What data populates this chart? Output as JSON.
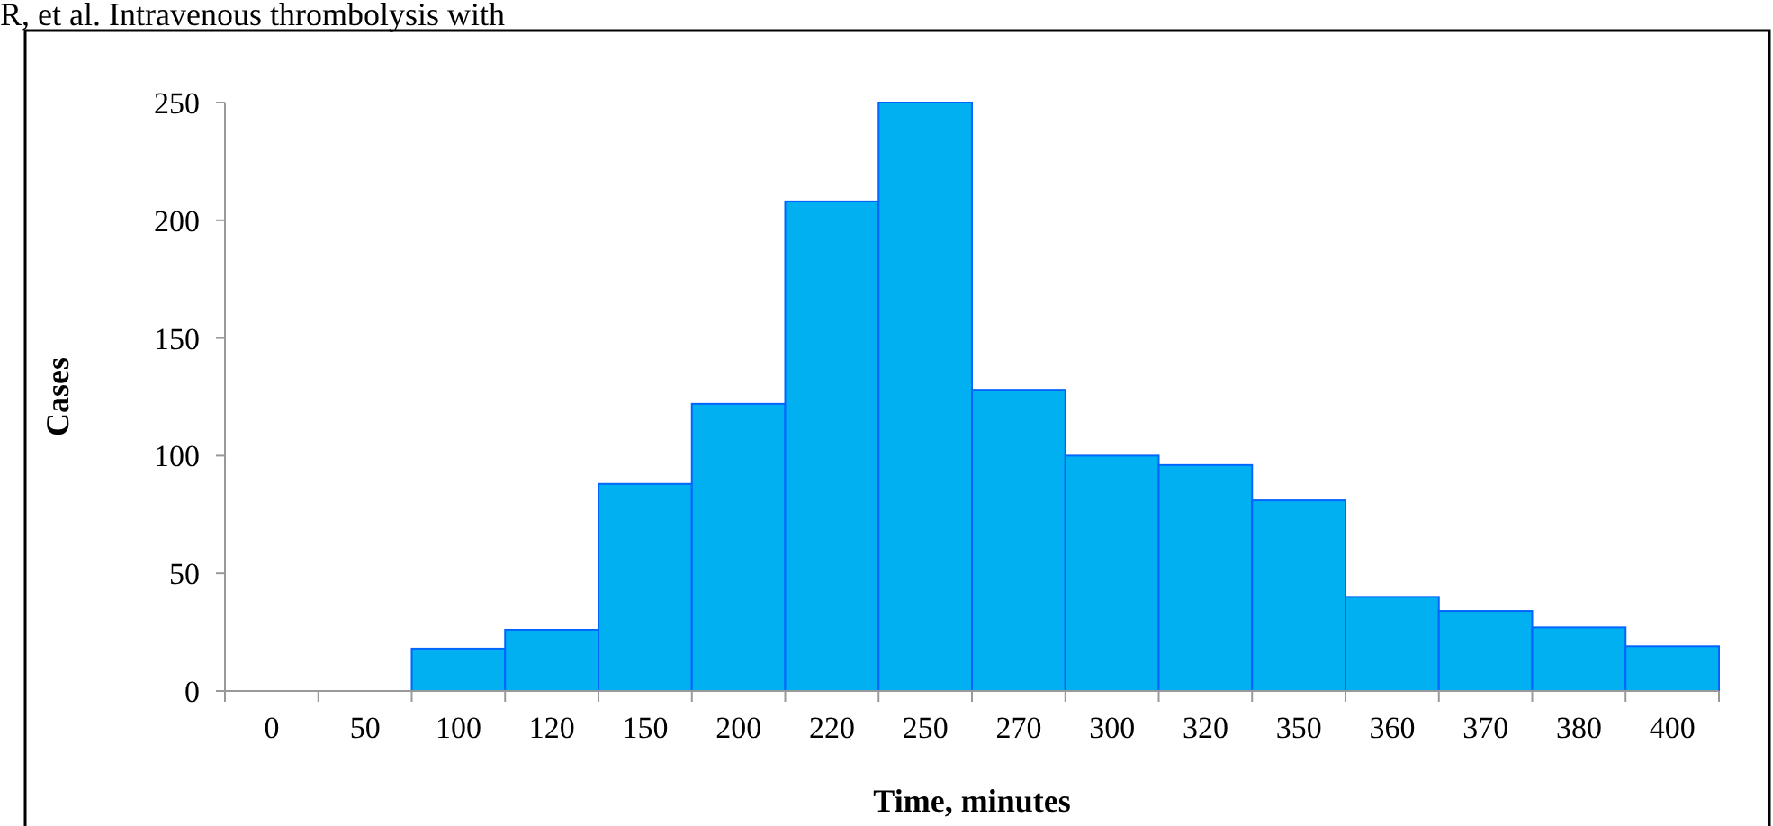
{
  "chart_data": {
    "type": "bar",
    "xlabel": "Time, minutes",
    "ylabel": "Cases",
    "annotations": [
      "R,  et  al.  Intravenous  thrombolysis  with"
    ],
    "categories": [
      "0",
      "50",
      "100",
      "120",
      "150",
      "200",
      "220",
      "250",
      "270",
      "300",
      "320",
      "350",
      "360",
      "370",
      "380",
      "400"
    ],
    "values": [
      null,
      null,
      18,
      26,
      88,
      122,
      208,
      250,
      128,
      100,
      96,
      81,
      40,
      34,
      27,
      19
    ],
    "color": "#00b0f0",
    "ylim": [
      0,
      250
    ],
    "yticks": [
      0,
      50,
      100,
      150,
      200,
      250
    ],
    "grid": false
  }
}
